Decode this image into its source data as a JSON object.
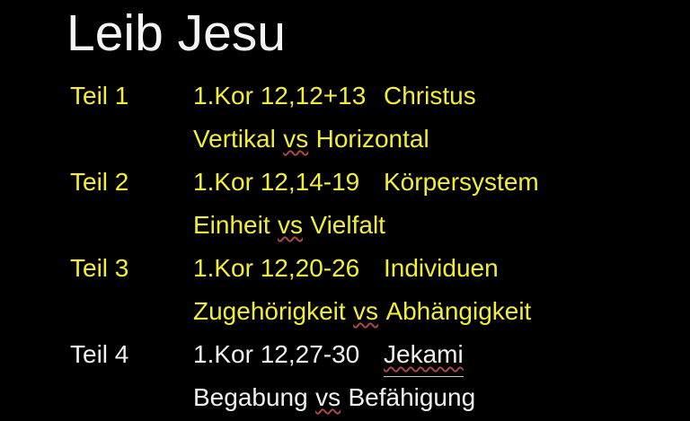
{
  "slide": {
    "title": "Leib Jesu",
    "colors": {
      "background": "#000000",
      "title": "#f5f5f5",
      "yellow": "#f2ee33",
      "white": "#f0f0f0",
      "squiggle": "#a84848",
      "underline": "#cfc8c8"
    },
    "parts": [
      {
        "label": "Teil 1",
        "ref": "1.Kor 12,12+13",
        "topic": "Christus"
      },
      {
        "label": "Teil 2",
        "ref": "1.Kor 12,14-19",
        "topic": "Körpersystem"
      },
      {
        "label": "Teil 3",
        "ref": "1.Kor 12,20-26",
        "topic": "Individuen"
      },
      {
        "label": "Teil 4",
        "ref": "1.Kor 12,27-30",
        "topic": "Jekami"
      }
    ],
    "contrasts": [
      {
        "pre": "Vertikal",
        "vs": "vs",
        "post": "Horizontal"
      },
      {
        "pre": "Einheit",
        "vs": "vs",
        "post": "Vielfalt"
      },
      {
        "pre": "Zugehörigkeit",
        "vs": "vs",
        "post": "Abhängigkeit"
      },
      {
        "pre": "Begabung",
        "vs": "vs",
        "post": "Befähigung"
      }
    ]
  }
}
